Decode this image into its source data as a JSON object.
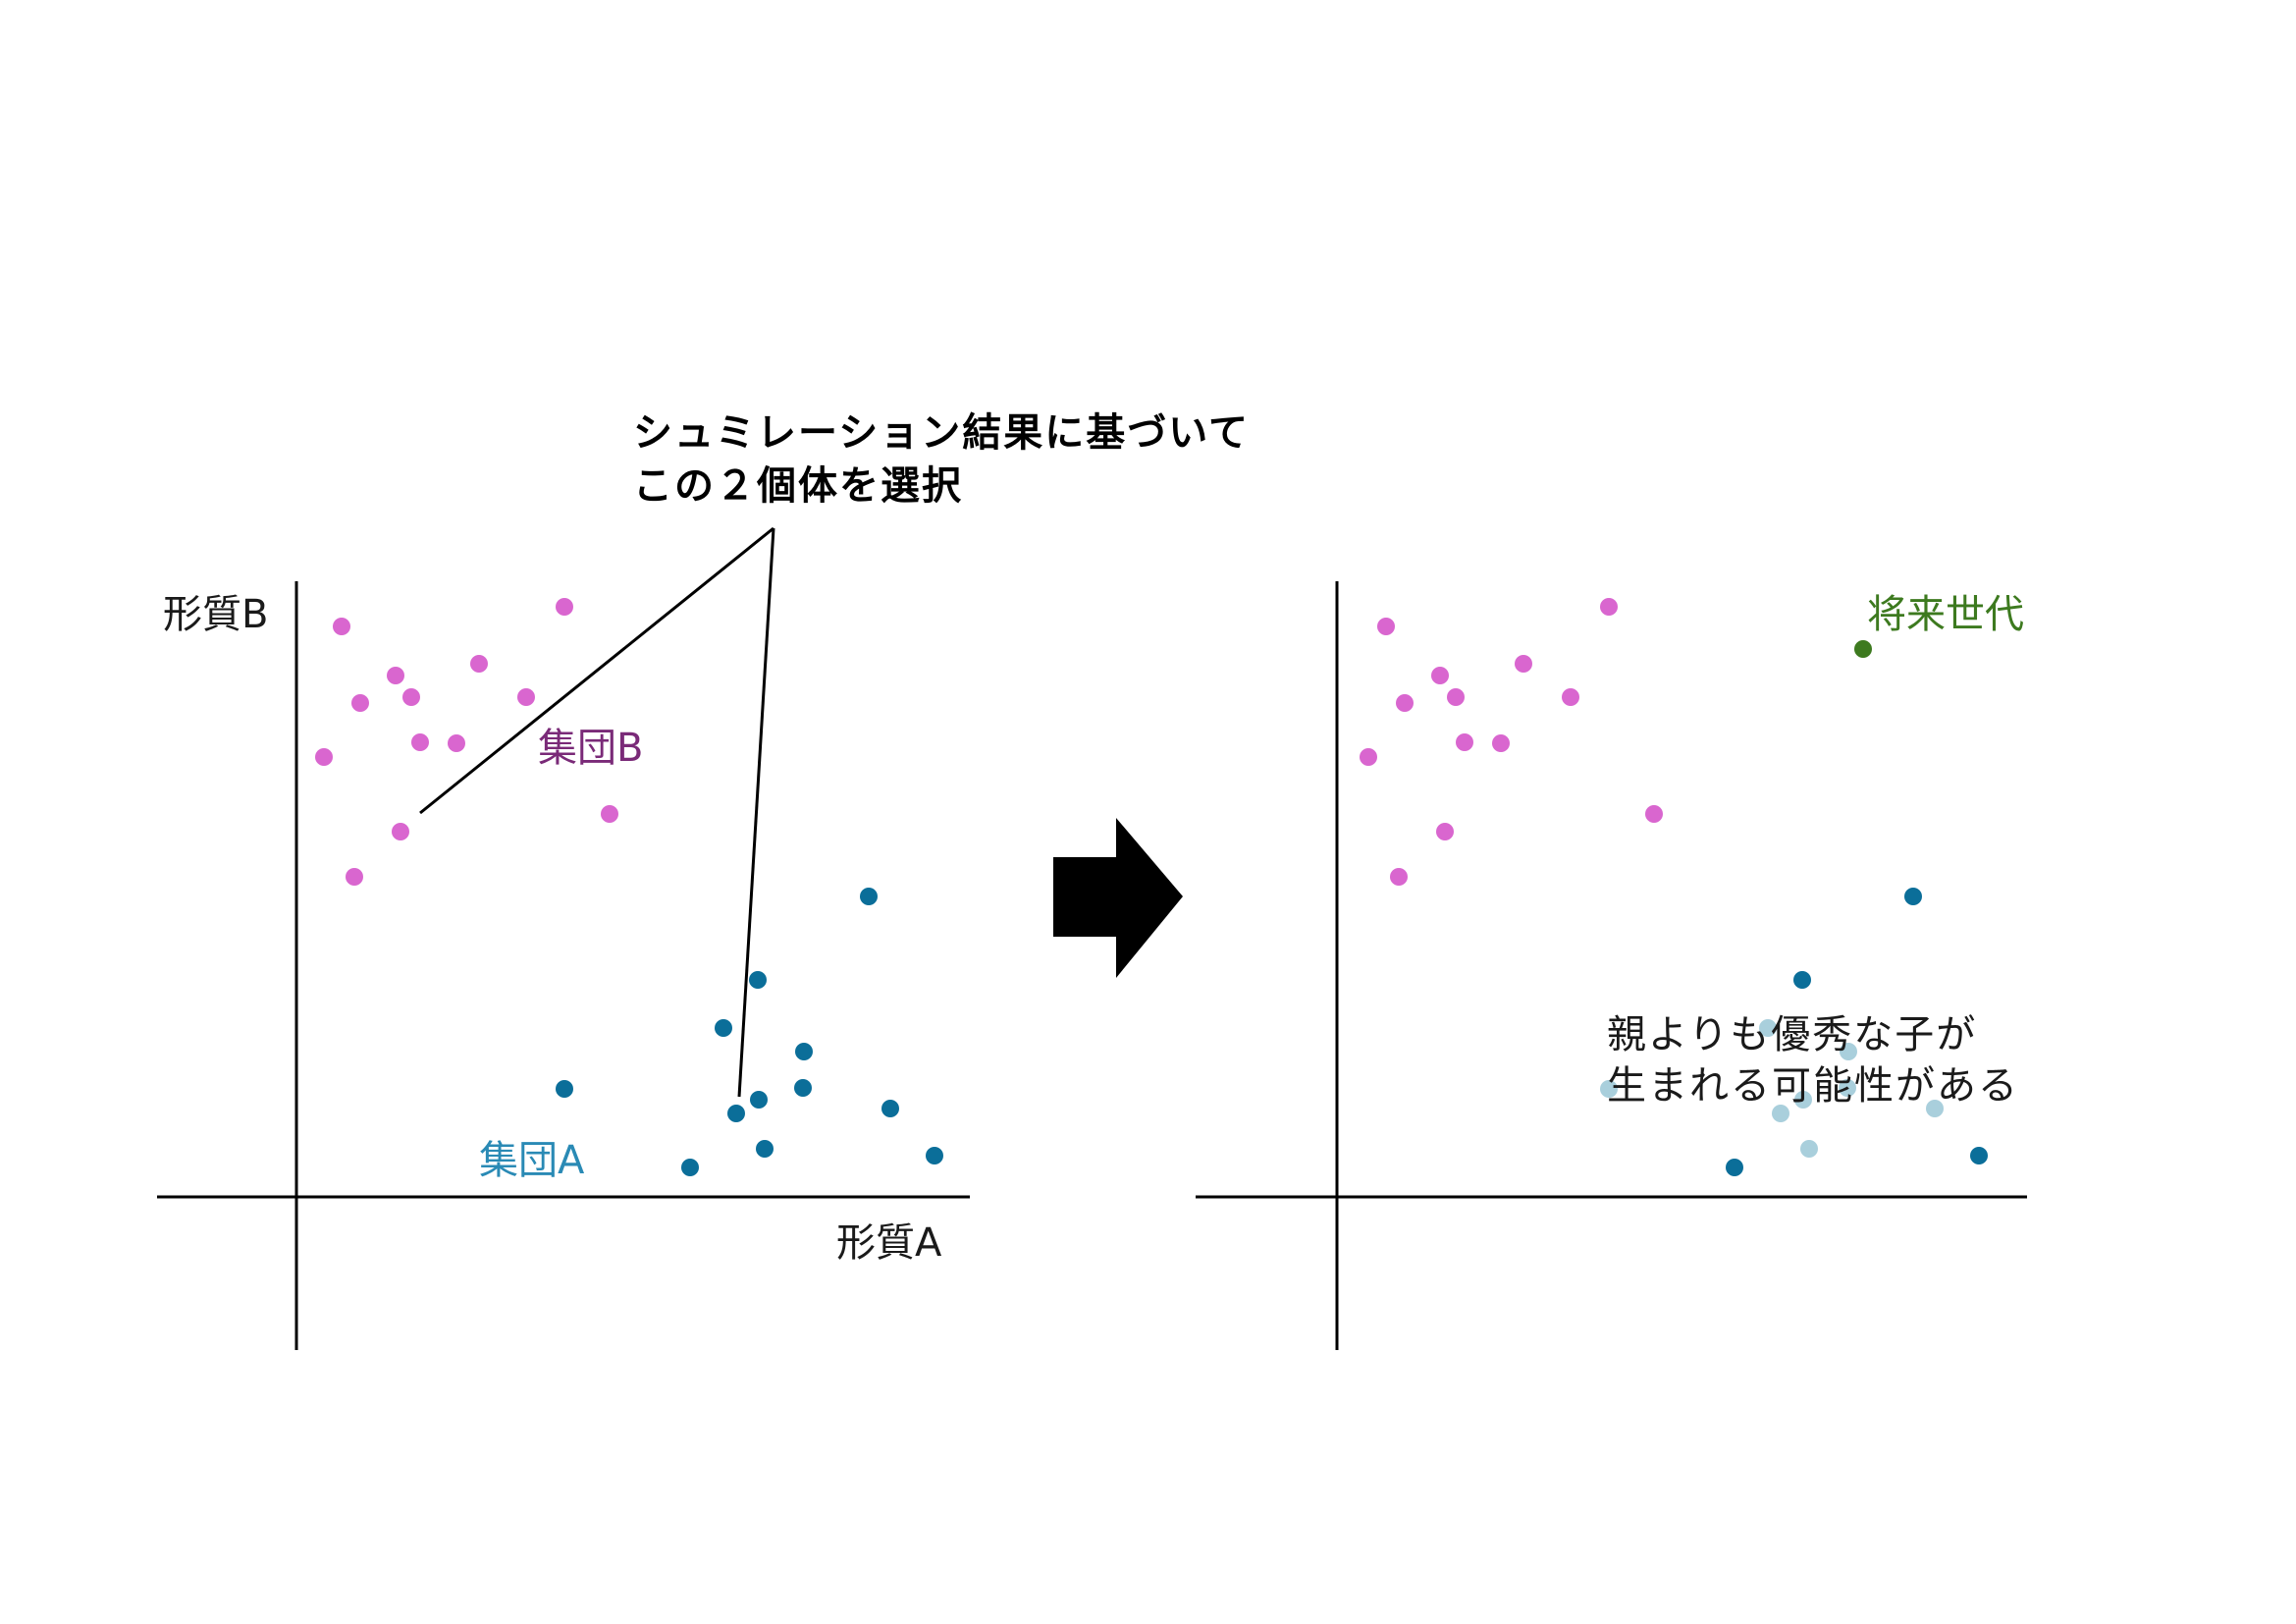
{
  "callout": {
    "line1": "シュミレーション結果に基づいて",
    "line2": "この２個体を選択"
  },
  "left_panel": {
    "y_axis_label": "形質B",
    "x_axis_label": "形質A",
    "group_b_label": "集団B",
    "group_a_label": "集団A"
  },
  "right_panel": {
    "future_label": "将来世代",
    "note_line1": "親よりも優秀な子が",
    "note_line2": "生まれる可能性がある"
  },
  "colors": {
    "group_b": "#d966cf",
    "group_b_label": "#7a2a78",
    "group_a": "#0b6e99",
    "group_a_label": "#2a8ab5",
    "group_a_faded": "#a9cfdc",
    "future": "#3d7a1f",
    "axis": "#000000",
    "arrow": "#000000"
  },
  "icons": {
    "transition": "right-arrow-icon"
  }
}
